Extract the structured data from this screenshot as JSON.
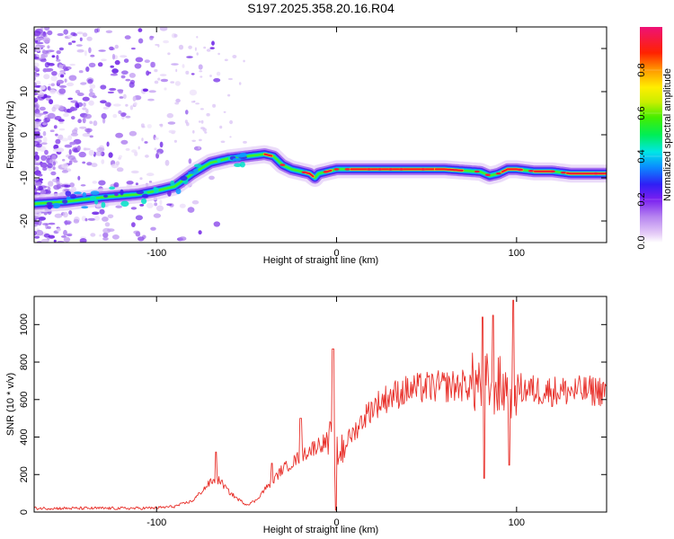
{
  "title": "S197.2025.358.20.16.R04",
  "chart_data": [
    {
      "type": "heatmap",
      "name": "spectrogram",
      "xlabel": "Height of straight line (km)",
      "ylabel": "Frequency (Hz)",
      "xlim": [
        -168,
        150
      ],
      "ylim": [
        -25,
        25
      ],
      "xticks": [
        -100,
        0,
        100
      ],
      "yticks": [
        -20,
        -10,
        0,
        10,
        20
      ],
      "colorbar": {
        "label": "Normalized spectral amplitude",
        "range": [
          0,
          1
        ],
        "ticks": [
          "0.0",
          "0.2",
          "0.4",
          "0.6",
          "0.8"
        ],
        "tick_values": [
          0,
          0.2,
          0.4,
          0.6,
          0.8
        ]
      },
      "ridge": {
        "x": [
          -168,
          -150,
          -130,
          -110,
          -100,
          -90,
          -80,
          -70,
          -60,
          -50,
          -40,
          -35,
          -30,
          -25,
          -20,
          -15,
          -12,
          -10,
          -5,
          0,
          10,
          20,
          40,
          60,
          80,
          85,
          90,
          95,
          100,
          110,
          120,
          130,
          140,
          150
        ],
        "y": [
          -16,
          -15.5,
          -14.5,
          -13.8,
          -13,
          -12,
          -9,
          -6.5,
          -5.5,
          -5,
          -4.5,
          -5,
          -7,
          -8,
          -8.5,
          -9,
          -10,
          -9,
          -8.5,
          -8,
          -8,
          -8,
          -8,
          -8,
          -8.6,
          -9.5,
          -9,
          -8,
          -8,
          -8.5,
          -8.5,
          -9,
          -9,
          -9
        ]
      }
    },
    {
      "type": "line",
      "name": "snr",
      "xlabel": "Height of straight line (km)",
      "ylabel": "SNR (10 * v/v)",
      "xlim": [
        -168,
        150
      ],
      "ylim": [
        0,
        1150
      ],
      "xticks": [
        -100,
        0,
        100
      ],
      "yticks": [
        0,
        200,
        400,
        600,
        800,
        1000
      ],
      "color": "#e8302a",
      "envelope": {
        "x": [
          -168,
          -110,
          -100,
          -90,
          -80,
          -75,
          -70,
          -65,
          -60,
          -55,
          -50,
          -45,
          -40,
          -35,
          -30,
          -25,
          -20,
          -15,
          -10,
          -5,
          -2,
          0,
          5,
          10,
          15,
          20,
          30,
          40,
          50,
          60,
          70,
          80,
          90,
          95,
          100,
          110,
          120,
          130,
          140,
          150
        ],
        "y": [
          20,
          20,
          22,
          30,
          60,
          110,
          160,
          170,
          110,
          70,
          40,
          60,
          120,
          170,
          230,
          260,
          300,
          330,
          360,
          380,
          350,
          300,
          370,
          430,
          500,
          560,
          620,
          650,
          665,
          670,
          675,
          690,
          670,
          660,
          660,
          650,
          645,
          645,
          645,
          650
        ]
      },
      "spikes": [
        {
          "x": -67,
          "y": 320
        },
        {
          "x": -36,
          "y": 260
        },
        {
          "x": -20,
          "y": 500
        },
        {
          "x": -2,
          "y": 870
        },
        {
          "x": 81,
          "y": 1040
        },
        {
          "x": 87,
          "y": 1050
        },
        {
          "x": 96,
          "y": 1060
        },
        {
          "x": 98,
          "y": 1130
        },
        {
          "x": 82,
          "y": 180
        },
        {
          "x": 96,
          "y": 250
        }
      ]
    }
  ]
}
